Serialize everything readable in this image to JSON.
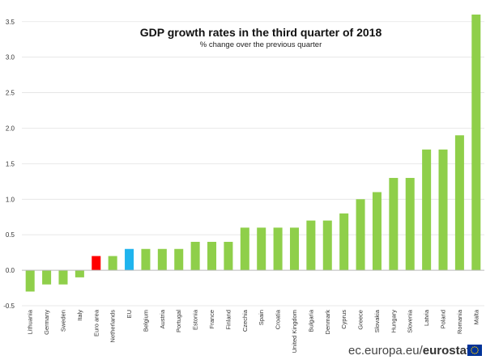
{
  "chart_data": {
    "type": "bar",
    "title": "GDP growth rates in the third quarter of 2018",
    "subtitle": "% change over the previous quarter",
    "categories": [
      "Lithuania",
      "Germany",
      "Sweden",
      "Italy",
      "Euro area",
      "Netherlands",
      "EU",
      "Belgium",
      "Austria",
      "Portugal",
      "Estonia",
      "France",
      "Finland",
      "Czechia",
      "Spain",
      "Croatia",
      "United Kingdom",
      "Bulgaria",
      "Denmark",
      "Cyprus",
      "Greece",
      "Slovakia",
      "Hungary",
      "Slovenia",
      "Latvia",
      "Poland",
      "Romania",
      "Malta"
    ],
    "values": [
      -0.3,
      -0.2,
      -0.2,
      -0.1,
      0.2,
      0.2,
      0.3,
      0.3,
      0.3,
      0.3,
      0.4,
      0.4,
      0.4,
      0.6,
      0.6,
      0.6,
      0.6,
      0.7,
      0.7,
      0.8,
      1.0,
      1.1,
      1.3,
      1.3,
      1.7,
      1.7,
      1.9,
      3.6
    ],
    "colors": {
      "default": "#8fcf4a",
      "Euro area": "#ff0000",
      "EU": "#1fb4ee"
    },
    "ylim": [
      -0.5,
      3.6
    ],
    "yticks": [
      "-0.5",
      "0.0",
      "0.5",
      "1.0",
      "1.5",
      "2.0",
      "2.5",
      "3.0",
      "3.5"
    ],
    "grid": true,
    "xlabel": "",
    "ylabel": ""
  },
  "footer": {
    "site": "ec.europa.eu/",
    "brand": "eurostat"
  }
}
